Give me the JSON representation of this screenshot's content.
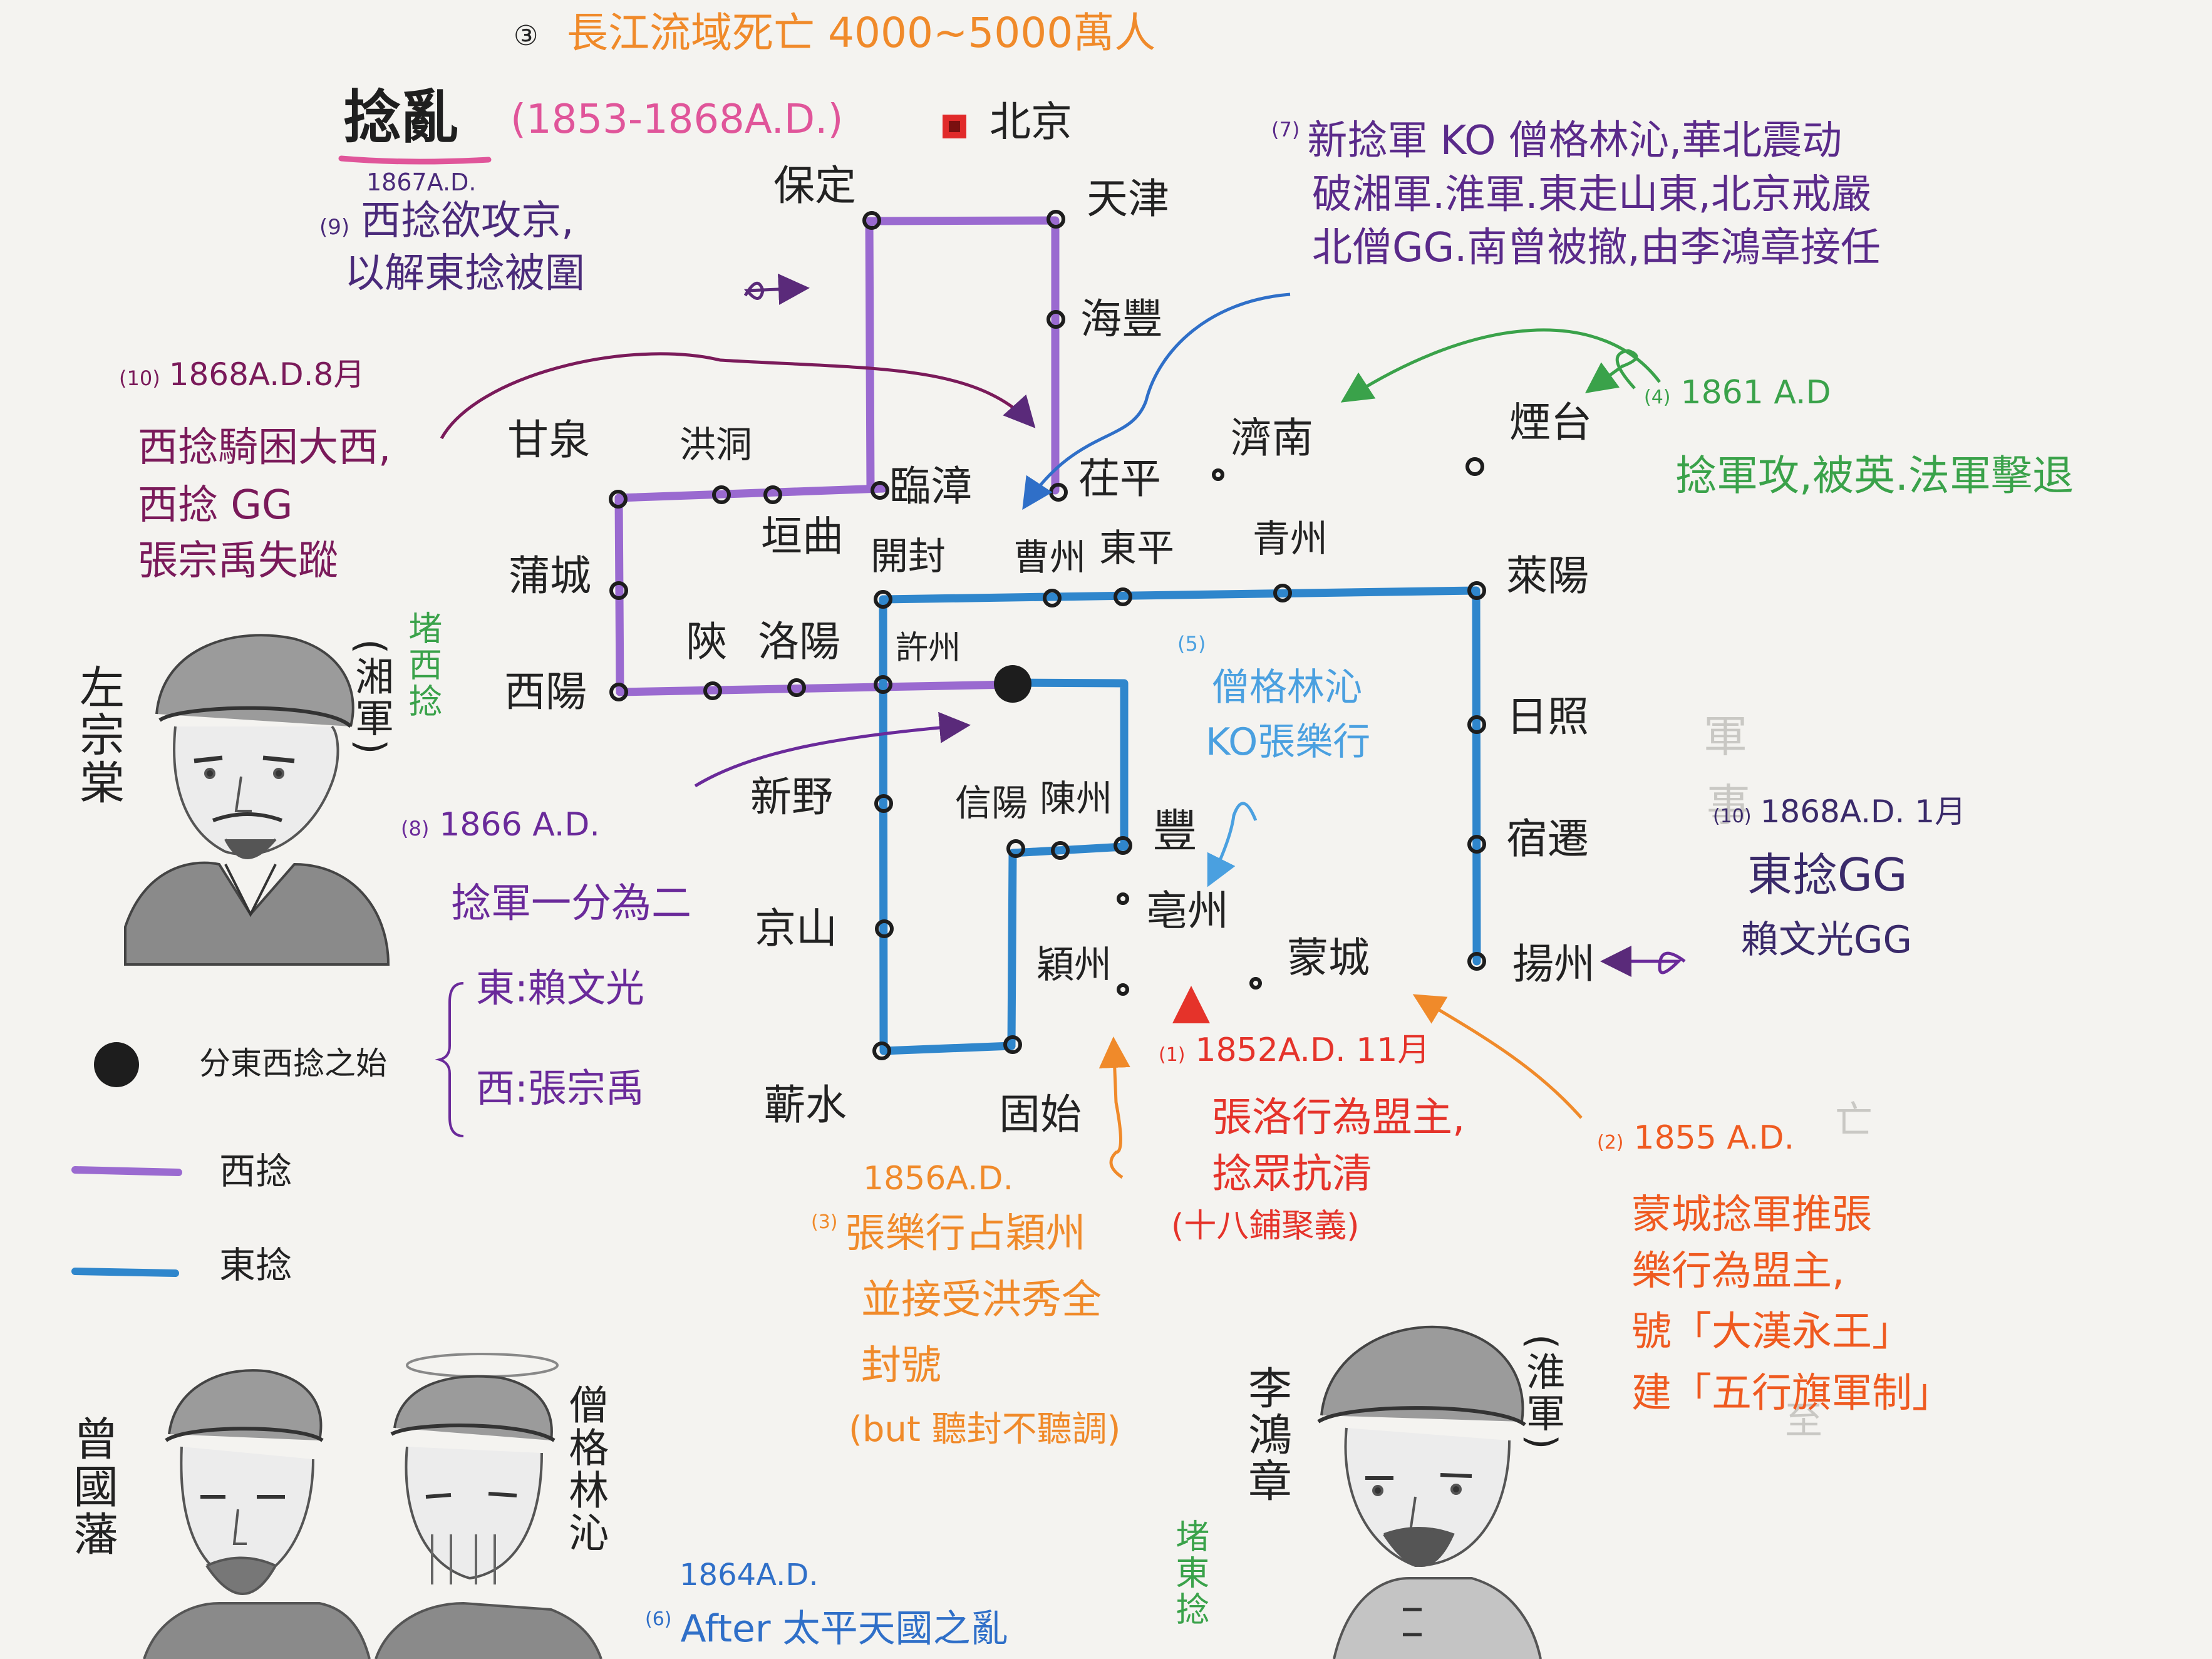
{
  "colors": {
    "west_line": "#9a6ad0",
    "east_line": "#2f86cc",
    "ink": "#1f1f1f",
    "orange": "#f08a2a",
    "red": "#e5332a",
    "purple": "#6a2a9a",
    "magenta": "#7a2a6a",
    "blue_ink": "#2f6fc8",
    "green": "#3aa24a",
    "light_blue": "#4aa0e0"
  },
  "header": {
    "marker": "③",
    "text": "長江流域死亡 4000~5000萬人",
    "title": "捻亂",
    "years": "(1853-1868A.D.)",
    "capital": "北京"
  },
  "cities": {
    "baoding": "保定",
    "tianjin": "天津",
    "haifeng": "海豐",
    "ganquan": "甘泉",
    "hongdong": "洪洞",
    "linzhang": "臨漳",
    "chiping": "茌平",
    "jinan": "濟南",
    "yantai": "煙台",
    "yuanqu": "垣曲",
    "kaifeng": "開封",
    "caozhou": "曹州",
    "dongping": "東平",
    "qingzhou": "青州",
    "laiyang": "萊陽",
    "pucheng": "蒲城",
    "xiyang": "西陽",
    "shan": "陝",
    "luoyang": "洛陽",
    "xuzhou": "許州",
    "rizhao": "日照",
    "xinye": "新野",
    "xinyang": "信陽",
    "chenzhou": "陳州",
    "feng": "豐",
    "suqian": "宿遷",
    "jingshan": "京山",
    "bozhou": "亳州",
    "yingzhou": "穎州",
    "mengcheng": "蒙城",
    "yangzhou": "揚州",
    "qishui": "蘄水",
    "gushi": "固始"
  },
  "notes": {
    "n9": {
      "date": "1867A.D.",
      "num": "(9)",
      "line1": "西捻欲攻京,",
      "line2": "以解東捻被圍"
    },
    "n7": {
      "num": "(7)",
      "line1": "新捻軍 KO 僧格林沁,華北震动",
      "line2": "破湘軍.淮軍.東走山東,北京戒嚴",
      "line3": "北僧GG.南曾被撤,由李鴻章接任"
    },
    "n10a": {
      "num": "(10)",
      "date": "1868A.D.8月",
      "line1": "西捻騎困大西,",
      "line2": "西捻 GG",
      "line3": "張宗禹失蹤"
    },
    "n4": {
      "num": "(4)",
      "date": "1861 A.D",
      "line": "捻軍攻,被英.法軍擊退"
    },
    "n5": {
      "num": "(5)",
      "line1": "僧格林沁",
      "line2": "KO張樂行"
    },
    "n8": {
      "num": "(8)",
      "date": "1866 A.D.",
      "line1": "捻軍一分為二",
      "east": "東:賴文光",
      "west": "西:張宗禹"
    },
    "n10b": {
      "num": "(10)",
      "date": "1868A.D. 1月",
      "line1": "東捻GG",
      "line2": "賴文光GG"
    },
    "n1": {
      "num": "(1)",
      "date": "1852A.D. 11月",
      "line1": "張洛行為盟主,",
      "line2": "捻眾抗清",
      "line3": "(十八鋪聚義)"
    },
    "n2": {
      "num": "(2)",
      "date": "1855 A.D.",
      "line1": "蒙城捻軍推張",
      "line2": "樂行為盟主,",
      "line3": "號「大漢永王」",
      "line4": "建「五行旗軍制」"
    },
    "n3": {
      "date": "1856A.D.",
      "num": "(3)",
      "line1": "張樂行占穎州",
      "line2": "並接受洪秀全",
      "line3": "封號",
      "line4": "(but 聽封不聽調)"
    },
    "n6": {
      "date": "1864A.D.",
      "num": "(6)",
      "line": "After 太平天國之亂"
    }
  },
  "legend": {
    "split": "分東西捻之始",
    "west": "西捻",
    "east": "東捻"
  },
  "people": {
    "zuo": "左宗棠",
    "zuo_army": "(湘軍)",
    "zuo_role": "堵西捻",
    "zeng": "曾國藩",
    "senggelinqin": "僧格林沁",
    "li": "李鴻章",
    "li_army": "(淮軍)",
    "li_role": "堵東捻"
  }
}
